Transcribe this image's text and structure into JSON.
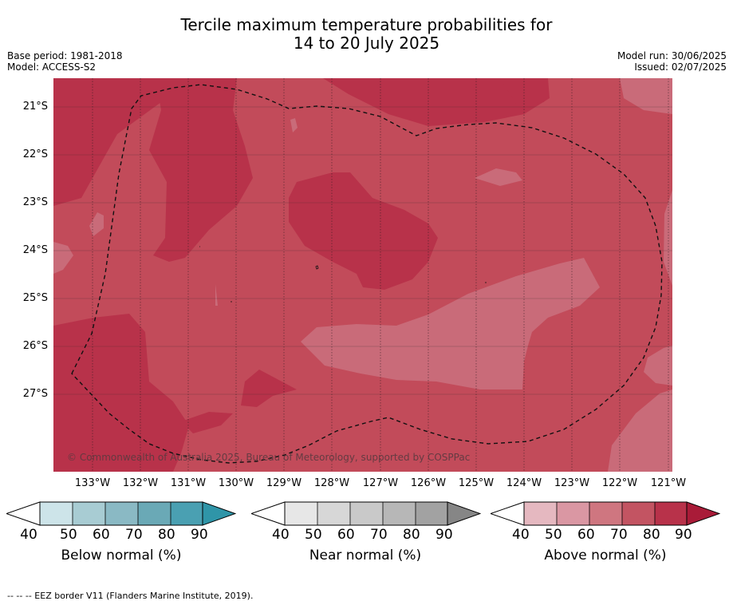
{
  "title_line1": "Tercile maximum temperature probabilities for",
  "title_line2": "14 to 20 July 2025",
  "base_period": "Base period: 1981-2018",
  "model": "Model: ACCESS-S2",
  "model_run": "Model run: 30/06/2025",
  "issued": "Issued: 02/07/2025",
  "lat_labels": [
    "21°S",
    "22°S",
    "23°S",
    "24°S",
    "25°S",
    "26°S",
    "27°S"
  ],
  "lon_labels": [
    "133°W",
    "132°W",
    "131°W",
    "130°W",
    "129°W",
    "128°W",
    "127°W",
    "126°W",
    "125°W",
    "124°W",
    "123°W",
    "122°W",
    "121°W"
  ],
  "copyright": "© Commonwealth of Australia 2025, Bureau of Meteorology, supported by COSPPac",
  "colorbars": [
    {
      "label": "Below normal (%)",
      "ticks": [
        "40",
        "50",
        "60",
        "70",
        "80",
        "90"
      ],
      "colors": [
        "#cde4e9",
        "#a8ccd3",
        "#8ab9c4",
        "#6aa9b6",
        "#4aa0b2",
        "#2f95a8"
      ]
    },
    {
      "label": "Near normal (%)",
      "ticks": [
        "40",
        "50",
        "60",
        "70",
        "80",
        "90"
      ],
      "colors": [
        "#e7e7e7",
        "#d7d7d7",
        "#c9c9c9",
        "#b7b7b7",
        "#a2a2a2",
        "#868686"
      ]
    },
    {
      "label": "Above normal (%)",
      "ticks": [
        "40",
        "50",
        "60",
        "70",
        "80",
        "90"
      ],
      "colors": [
        "#e5b8c0",
        "#da97a3",
        "#cf7680",
        "#c35462",
        "#b8324a",
        "#a91b38"
      ]
    }
  ],
  "footnote": "--  --  -- EEZ border V11 (Flanders Marine Institute, 2019).",
  "map_colors": {
    "c60": "#c96b79",
    "c70": "#c24b5a",
    "c80": "#b8324a"
  }
}
